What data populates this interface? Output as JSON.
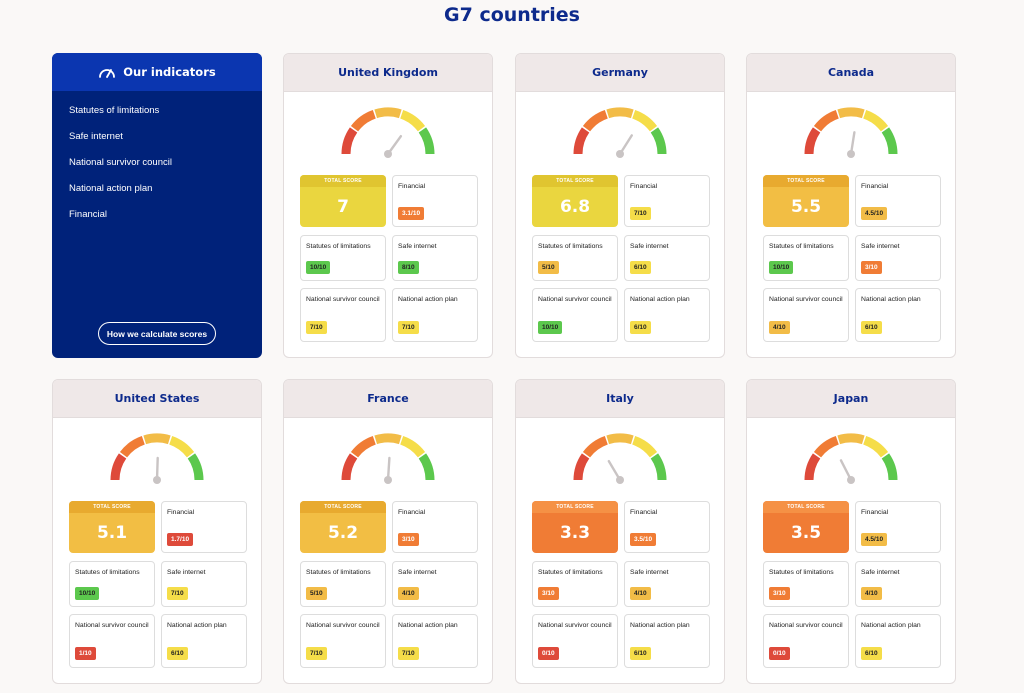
{
  "page": {
    "title": "G7 countries"
  },
  "indicators": {
    "title": "Our indicators",
    "icon": "speedometer-icon",
    "items": [
      "Statutes of limitations",
      "Safe internet",
      "National survivor council",
      "National action plan",
      "Financial"
    ],
    "button_label": "How we calculate scores"
  },
  "labels": {
    "total": "TOTAL SCORE",
    "financial": "Financial",
    "statutes": "Statutes of limitations",
    "safe_internet": "Safe internet",
    "council": "National survivor council",
    "action_plan": "National action plan"
  },
  "colors": {
    "navy": "#00227a",
    "brand_blue": "#0d2a8c",
    "red": "#de4a3a",
    "orange": "#f07c35",
    "amber": "#f2bc47",
    "yellow": "#f5dd49",
    "green": "#5cc84d"
  },
  "countries": [
    {
      "name": "United Kingdom",
      "total": "7",
      "total_color": "yellow",
      "score": 7.0,
      "financial": "3.1/10",
      "financial_color": "orange",
      "statutes": "10/10",
      "statutes_color": "green",
      "safe_internet": "8/10",
      "safe_internet_color": "green",
      "council": "7/10",
      "council_color": "yellow",
      "action_plan": "7/10",
      "action_plan_color": "yellow"
    },
    {
      "name": "Germany",
      "total": "6.8",
      "total_color": "yellow",
      "score": 6.8,
      "financial": "7/10",
      "financial_color": "yellow",
      "statutes": "5/10",
      "statutes_color": "amber",
      "safe_internet": "6/10",
      "safe_internet_color": "yellow",
      "council": "10/10",
      "council_color": "green",
      "action_plan": "6/10",
      "action_plan_color": "yellow"
    },
    {
      "name": "Canada",
      "total": "5.5",
      "total_color": "amber",
      "score": 5.5,
      "financial": "4.5/10",
      "financial_color": "amber",
      "statutes": "10/10",
      "statutes_color": "green",
      "safe_internet": "3/10",
      "safe_internet_color": "orange",
      "council": "4/10",
      "council_color": "amber",
      "action_plan": "6/10",
      "action_plan_color": "yellow"
    },
    {
      "name": "United States",
      "total": "5.1",
      "total_color": "amber",
      "score": 5.1,
      "financial": "1.7/10",
      "financial_color": "red",
      "statutes": "10/10",
      "statutes_color": "green",
      "safe_internet": "7/10",
      "safe_internet_color": "yellow",
      "council": "1/10",
      "council_color": "red",
      "action_plan": "6/10",
      "action_plan_color": "yellow"
    },
    {
      "name": "France",
      "total": "5.2",
      "total_color": "amber",
      "score": 5.2,
      "financial": "3/10",
      "financial_color": "orange",
      "statutes": "5/10",
      "statutes_color": "amber",
      "safe_internet": "4/10",
      "safe_internet_color": "amber",
      "council": "7/10",
      "council_color": "yellow",
      "action_plan": "7/10",
      "action_plan_color": "yellow"
    },
    {
      "name": "Italy",
      "total": "3.3",
      "total_color": "orange",
      "score": 3.3,
      "financial": "3.5/10",
      "financial_color": "orange",
      "statutes": "3/10",
      "statutes_color": "orange",
      "safe_internet": "4/10",
      "safe_internet_color": "amber",
      "council": "0/10",
      "council_color": "red",
      "action_plan": "6/10",
      "action_plan_color": "yellow"
    },
    {
      "name": "Japan",
      "total": "3.5",
      "total_color": "orange",
      "score": 3.5,
      "financial": "4.5/10",
      "financial_color": "amber",
      "statutes": "3/10",
      "statutes_color": "orange",
      "safe_internet": "4/10",
      "safe_internet_color": "amber",
      "council": "0/10",
      "council_color": "red",
      "action_plan": "6/10",
      "action_plan_color": "yellow"
    }
  ]
}
